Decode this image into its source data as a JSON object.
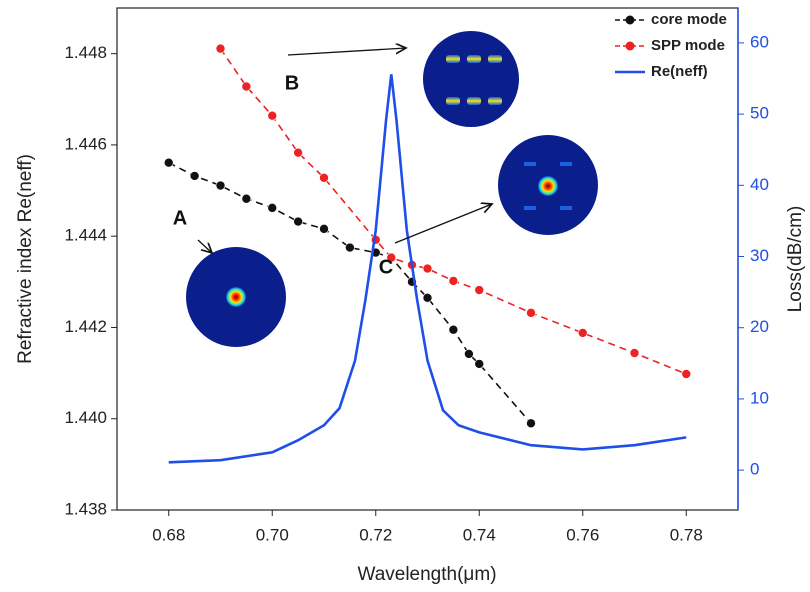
{
  "chart_data": {
    "type": "line",
    "x_label": "Wavelength(μm)",
    "y_label": "Refractive index Re(neff)",
    "y2_label": "Loss(dB/cm)",
    "xlim": [
      0.67,
      0.79
    ],
    "xticks": [
      {
        "value": 0.68,
        "label": "0.68"
      },
      {
        "value": 0.7,
        "label": "0.70"
      },
      {
        "value": 0.72,
        "label": "0.72"
      },
      {
        "value": 0.74,
        "label": "0.74"
      },
      {
        "value": 0.76,
        "label": "0.76"
      },
      {
        "value": 0.78,
        "label": "0.78"
      }
    ],
    "ylim": [
      1.438,
      1.449
    ],
    "yticks": [
      {
        "value": 1.438,
        "label": "1.438"
      },
      {
        "value": 1.44,
        "label": "1.440"
      },
      {
        "value": 1.442,
        "label": "1.442"
      },
      {
        "value": 1.444,
        "label": "1.444"
      },
      {
        "value": 1.446,
        "label": "1.446"
      },
      {
        "value": 1.448,
        "label": "1.448"
      }
    ],
    "y2lim": [
      -5.6,
      64.9
    ],
    "y2ticks": [
      0,
      10,
      20,
      30,
      40,
      50,
      60
    ],
    "y2_color": "#1f4fe8",
    "legend": "top-right",
    "annotations": [
      "A",
      "B",
      "C"
    ],
    "series": [
      {
        "name": "core mode",
        "color": "#111111",
        "style": "dashed-marker",
        "x": [
          0.68,
          0.685,
          0.69,
          0.695,
          0.7,
          0.705,
          0.71,
          0.715,
          0.72,
          0.723,
          0.727,
          0.73,
          0.735,
          0.738,
          0.74,
          0.75
        ],
        "values": [
          1.44561,
          1.44532,
          1.44511,
          1.44482,
          1.44462,
          1.44432,
          1.44416,
          1.44375,
          1.44364,
          1.44353,
          1.443,
          1.44265,
          1.44195,
          1.44142,
          1.4412,
          1.4399
        ]
      },
      {
        "name": "SPP mode",
        "color": "#ee2222",
        "style": "dashed-marker",
        "x": [
          0.69,
          0.695,
          0.7,
          0.705,
          0.71,
          0.72,
          0.723,
          0.727,
          0.73,
          0.735,
          0.74,
          0.75,
          0.76,
          0.77,
          0.78
        ],
        "values": [
          1.44811,
          1.44728,
          1.44664,
          1.44583,
          1.44528,
          1.44392,
          1.44353,
          1.44337,
          1.44329,
          1.44302,
          1.44282,
          1.44232,
          1.44188,
          1.44144,
          1.44098
        ]
      },
      {
        "name": "Re(neff)",
        "color": "#1f4fe8",
        "style": "solid",
        "axis": "y2",
        "x": [
          0.68,
          0.69,
          0.7,
          0.705,
          0.71,
          0.713,
          0.716,
          0.718,
          0.72,
          0.722,
          0.723,
          0.724,
          0.726,
          0.728,
          0.73,
          0.733,
          0.736,
          0.74,
          0.75,
          0.76,
          0.77,
          0.78
        ],
        "values": [
          1.1,
          1.4,
          2.5,
          4.2,
          6.3,
          8.7,
          15.4,
          23.9,
          33.7,
          49.2,
          55.6,
          49.2,
          33.7,
          23.9,
          15.4,
          8.4,
          6.3,
          5.3,
          3.5,
          2.9,
          3.5,
          4.6
        ]
      }
    ]
  }
}
